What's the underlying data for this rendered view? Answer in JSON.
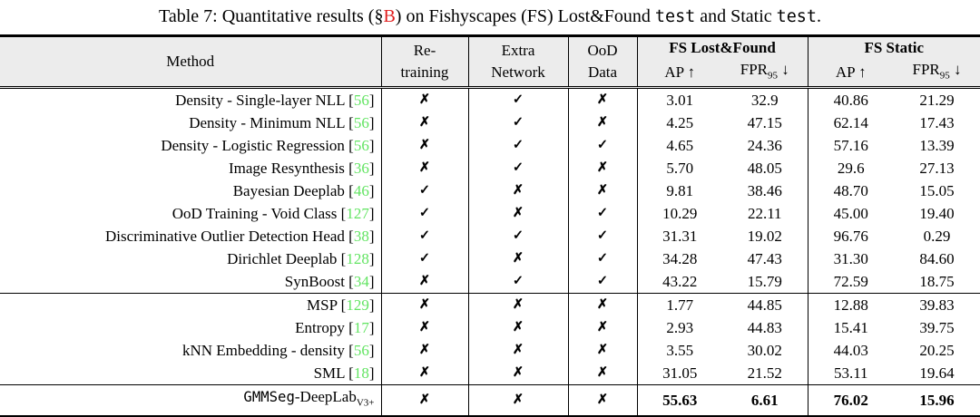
{
  "colors": {
    "cite_green": "#62e462",
    "ref_red": "#e01e1e",
    "header_bg": "#ececec"
  },
  "title": {
    "parts": {
      "prefix": "Table 7: Quantitative results (§",
      "section_ref": "B",
      "after_ref": ") on Fishyscapes (FS) Lost&Found ",
      "mono_1": "test",
      "between": " and Static ",
      "mono_2": "test",
      "suffix": "."
    }
  },
  "table": {
    "header": {
      "method": "Method",
      "retraining": [
        "Re-",
        "training"
      ],
      "extra_network": [
        "Extra",
        "Network"
      ],
      "ood_data": [
        "OoD",
        "Data"
      ],
      "group_lost_found": "FS Lost&Found",
      "group_static": "FS Static",
      "ap_label": "AP",
      "up_arrow": "↑",
      "fpr_label": "FPR",
      "fpr_sub": "95",
      "down_arrow": "↓"
    },
    "marks": {
      "yes": "✓",
      "no": "✗"
    },
    "rows": [
      {
        "method": "Density - Single-layer NLL",
        "cite": "56",
        "retraining": "no",
        "extra": "yes",
        "ood": "no",
        "lf_ap": "3.01",
        "lf_fpr": "32.9",
        "st_ap": "40.86",
        "st_fpr": "21.29"
      },
      {
        "method": "Density - Minimum NLL",
        "cite": "56",
        "retraining": "no",
        "extra": "yes",
        "ood": "no",
        "lf_ap": "4.25",
        "lf_fpr": "47.15",
        "st_ap": "62.14",
        "st_fpr": "17.43"
      },
      {
        "method": "Density - Logistic Regression",
        "cite": "56",
        "retraining": "no",
        "extra": "yes",
        "ood": "yes",
        "lf_ap": "4.65",
        "lf_fpr": "24.36",
        "st_ap": "57.16",
        "st_fpr": "13.39"
      },
      {
        "method": "Image Resynthesis",
        "cite": "36",
        "retraining": "no",
        "extra": "yes",
        "ood": "no",
        "lf_ap": "5.70",
        "lf_fpr": "48.05",
        "st_ap": "29.6",
        "st_fpr": "27.13"
      },
      {
        "method": "Bayesian Deeplab",
        "cite": "46",
        "retraining": "yes",
        "extra": "no",
        "ood": "no",
        "lf_ap": "9.81",
        "lf_fpr": "38.46",
        "st_ap": "48.70",
        "st_fpr": "15.05"
      },
      {
        "method": "OoD Training - Void Class",
        "cite": "127",
        "retraining": "yes",
        "extra": "no",
        "ood": "yes",
        "lf_ap": "10.29",
        "lf_fpr": "22.11",
        "st_ap": "45.00",
        "st_fpr": "19.40"
      },
      {
        "method": "Discriminative Outlier Detection Head",
        "cite": "38",
        "retraining": "yes",
        "extra": "yes",
        "ood": "yes",
        "lf_ap": "31.31",
        "lf_fpr": "19.02",
        "st_ap": "96.76",
        "st_fpr": "0.29"
      },
      {
        "method": "Dirichlet Deeplab",
        "cite": "128",
        "retraining": "yes",
        "extra": "no",
        "ood": "yes",
        "lf_ap": "34.28",
        "lf_fpr": "47.43",
        "st_ap": "31.30",
        "st_fpr": "84.60"
      },
      {
        "method": "SynBoost",
        "cite": "34",
        "retraining": "no",
        "extra": "yes",
        "ood": "yes",
        "lf_ap": "43.22",
        "lf_fpr": "15.79",
        "st_ap": "72.59",
        "st_fpr": "18.75",
        "section_end": true
      },
      {
        "method": "MSP",
        "cite": "129",
        "retraining": "no",
        "extra": "no",
        "ood": "no",
        "lf_ap": "1.77",
        "lf_fpr": "44.85",
        "st_ap": "12.88",
        "st_fpr": "39.83"
      },
      {
        "method": "Entropy",
        "cite": "17",
        "retraining": "no",
        "extra": "no",
        "ood": "no",
        "lf_ap": "2.93",
        "lf_fpr": "44.83",
        "st_ap": "15.41",
        "st_fpr": "39.75"
      },
      {
        "method": "kNN Embedding - density",
        "cite": "56",
        "retraining": "no",
        "extra": "no",
        "ood": "no",
        "lf_ap": "3.55",
        "lf_fpr": "30.02",
        "st_ap": "44.03",
        "st_fpr": "20.25"
      },
      {
        "method": "SML",
        "cite": "18",
        "retraining": "no",
        "extra": "no",
        "ood": "no",
        "lf_ap": "31.05",
        "lf_fpr": "21.52",
        "st_ap": "53.11",
        "st_fpr": "19.64",
        "section_end": true
      },
      {
        "method_mono": "GMMSeg",
        "method_serif": "-DeepLab",
        "method_sub": "V3+",
        "bold": true,
        "retraining": "no",
        "extra": "no",
        "ood": "no",
        "lf_ap": "55.63",
        "lf_fpr": "6.61",
        "st_ap": "76.02",
        "st_fpr": "15.96"
      }
    ]
  }
}
